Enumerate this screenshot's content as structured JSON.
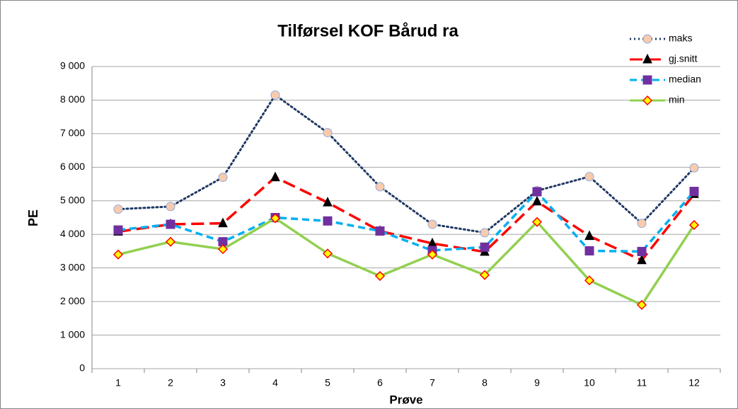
{
  "chart_data": {
    "type": "line",
    "title": "Tilførsel KOF Bårud ra",
    "x_label": "Prøve",
    "y_label": "PE",
    "categories": [
      "1",
      "2",
      "3",
      "4",
      "5",
      "6",
      "7",
      "8",
      "9",
      "10",
      "11",
      "12"
    ],
    "series": [
      {
        "name": "maks",
        "color": "#1f3864",
        "dash": "dotted",
        "marker": "circle",
        "marker_fill": "#f8cbad",
        "marker_stroke": "#8faadc",
        "values": [
          4750,
          4830,
          5700,
          8150,
          7030,
          5420,
          4300,
          4050,
          5300,
          5720,
          4330,
          5980
        ]
      },
      {
        "name": "gj.snitt",
        "color": "#ff0000",
        "dash": "longdash",
        "marker": "triangle",
        "marker_fill": "#000000",
        "marker_stroke": "#000000",
        "values": [
          4080,
          4300,
          4330,
          5700,
          4950,
          4100,
          3730,
          3480,
          4980,
          3950,
          3230,
          5200
        ]
      },
      {
        "name": "median",
        "color": "#00b0f0",
        "dash": "dash",
        "marker": "square",
        "marker_fill": "#7030a0",
        "marker_stroke": "#7030a0",
        "values": [
          4130,
          4300,
          3780,
          4500,
          4400,
          4100,
          3520,
          3620,
          5270,
          3510,
          3490,
          5280
        ]
      },
      {
        "name": "min",
        "color": "#92d050",
        "dash": "solid",
        "marker": "diamond",
        "marker_fill": "#ffff00",
        "marker_stroke": "#ff0000",
        "values": [
          3400,
          3780,
          3560,
          4480,
          3430,
          2760,
          3400,
          2790,
          4370,
          2630,
          1900,
          4280
        ]
      }
    ],
    "ylim": [
      0,
      9000
    ],
    "yticks": [
      0,
      {
        "value": 1000,
        "label": "1 000"
      },
      {
        "value": 2000,
        "label": "2 000"
      },
      {
        "value": 3000,
        "label": "3 000"
      },
      {
        "value": 4000,
        "label": "4 000"
      },
      {
        "value": 5000,
        "label": "5 000"
      },
      {
        "value": 6000,
        "label": "6 000"
      },
      {
        "value": 7000,
        "label": "7 000"
      },
      {
        "value": 8000,
        "label": "8 000"
      },
      {
        "value": 9000,
        "label": "9 000"
      }
    ],
    "grid": true,
    "legend": "top-right"
  }
}
